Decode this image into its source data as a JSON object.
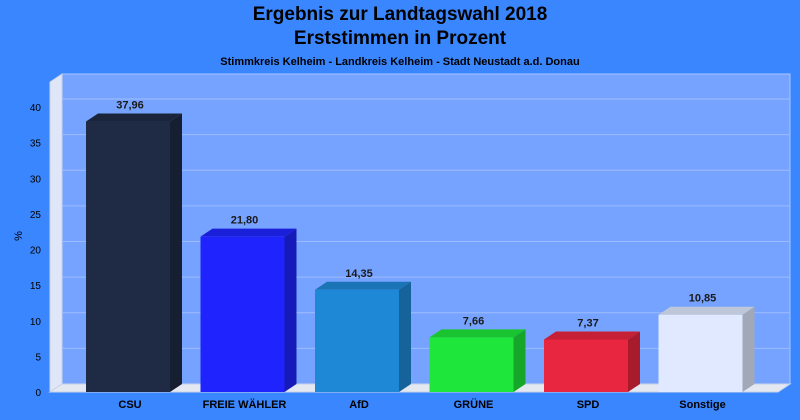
{
  "chart_data": {
    "type": "bar",
    "title": "Ergebnis zur Landtagswahl 2018",
    "subtitle_line2": "Erststimmen in Prozent",
    "subtitle": "Stimmkreis Kelheim - Landkreis Kelheim - Stadt Neustadt a.d. Donau",
    "ylabel": "%",
    "ylim": [
      0,
      40
    ],
    "yticks": [
      0,
      5,
      10,
      15,
      20,
      25,
      30,
      35,
      40
    ],
    "categories": [
      "CSU",
      "FREIE WÄHLER",
      "AfD",
      "GRÜNE",
      "SPD",
      "Sonstige"
    ],
    "values": [
      37.96,
      21.8,
      14.35,
      7.66,
      7.37,
      10.85
    ],
    "value_labels": [
      "37,96",
      "21,80",
      "14,35",
      "7,66",
      "7,37",
      "10,85"
    ],
    "colors": [
      "#1f2a44",
      "#1f24ff",
      "#1f88d6",
      "#1fe63a",
      "#e8263f",
      "#e0e9ff"
    ],
    "grid": true
  }
}
